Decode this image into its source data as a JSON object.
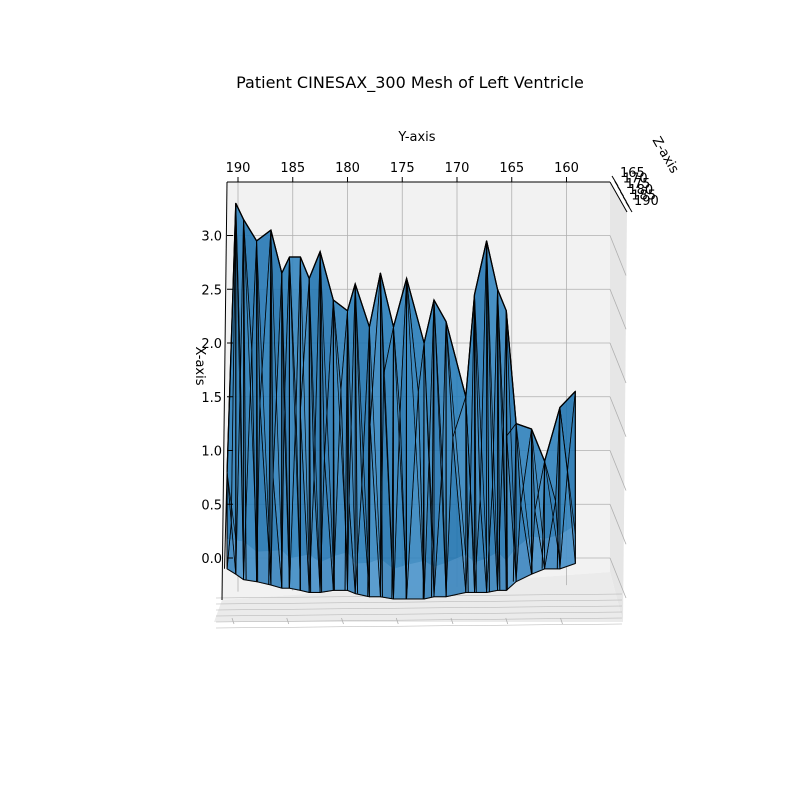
{
  "chart_data": {
    "type": "surface",
    "title": "Patient CINESAX_300 Mesh of Left Ventricle",
    "xlabel": "X-axis",
    "ylabel": "Y-axis",
    "zlabel": "Z-axis",
    "y_ticks": [
      "190",
      "185",
      "180",
      "175",
      "170",
      "165",
      "160"
    ],
    "x_ticks": [
      "3.0",
      "2.5",
      "2.0",
      "1.5",
      "1.0",
      "0.5",
      "0.0"
    ],
    "z_ticks": [
      "165",
      "170",
      "175",
      "180",
      "185",
      "190"
    ],
    "ylim": [
      192,
      157
    ],
    "xlim": [
      -0.4,
      3.35
    ],
    "grid": true,
    "surface_color": "#1f77b4",
    "edge_color": "#000000",
    "pane_color": "#f2f2f2",
    "grid_color": "#b0b0b0",
    "profile": {
      "y": [
        191.0,
        190.2,
        189.5,
        188.3,
        187.0,
        186.0,
        185.3,
        184.3,
        183.5,
        182.5,
        181.3,
        180.0,
        179.3,
        178.0,
        177.0,
        175.8,
        174.6,
        173.0,
        172.1,
        171.0,
        169.2,
        168.4,
        167.3,
        166.3,
        165.5,
        164.6,
        163.2,
        162.0,
        160.6,
        159.2
      ],
      "upper": [
        0.8,
        3.3,
        3.15,
        2.95,
        3.05,
        2.65,
        2.8,
        2.8,
        2.6,
        2.85,
        2.4,
        2.3,
        2.55,
        2.15,
        2.65,
        2.15,
        2.6,
        2.0,
        2.4,
        2.2,
        1.5,
        2.45,
        2.95,
        2.5,
        2.3,
        1.25,
        1.2,
        0.9,
        1.4,
        1.55
      ],
      "lower": [
        -0.1,
        -0.15,
        -0.2,
        -0.22,
        -0.25,
        -0.28,
        -0.28,
        -0.3,
        -0.32,
        -0.32,
        -0.3,
        -0.3,
        -0.33,
        -0.36,
        -0.36,
        -0.38,
        -0.38,
        -0.38,
        -0.36,
        -0.36,
        -0.32,
        -0.32,
        -0.32,
        -0.3,
        -0.3,
        -0.22,
        -0.15,
        -0.1,
        -0.1,
        -0.05
      ]
    }
  }
}
